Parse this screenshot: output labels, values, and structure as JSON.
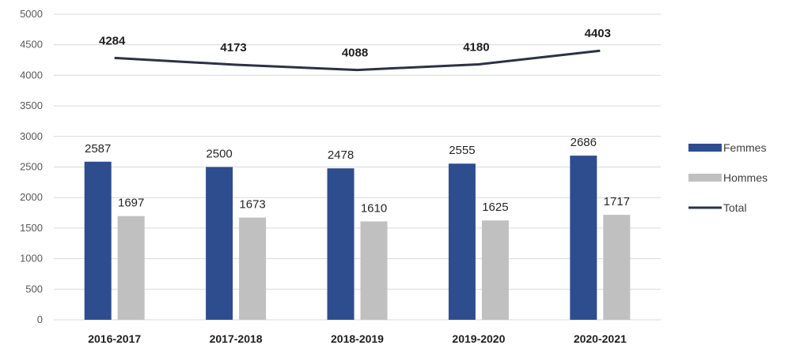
{
  "chart_data": {
    "type": "bar",
    "categories": [
      "2016-2017",
      "2017-2018",
      "2018-2019",
      "2019-2020",
      "2020-2021"
    ],
    "series": [
      {
        "name": "Femmes",
        "type": "bar",
        "color": "#2E4D8F",
        "values": [
          2587,
          2500,
          2478,
          2555,
          2686
        ]
      },
      {
        "name": "Hommes",
        "type": "bar",
        "color": "#C0C0C0",
        "values": [
          1697,
          1673,
          1610,
          1625,
          1717
        ]
      },
      {
        "name": "Total",
        "type": "line",
        "color": "#2B3245",
        "values": [
          4284,
          4173,
          4088,
          4180,
          4403
        ]
      }
    ],
    "ylim": [
      0,
      5000
    ],
    "yticks": [
      "0",
      "500",
      "1000",
      "1500",
      "2000",
      "2500",
      "3000",
      "3500",
      "4000",
      "4500",
      "5000"
    ],
    "grid": true,
    "legend_position": "right"
  }
}
